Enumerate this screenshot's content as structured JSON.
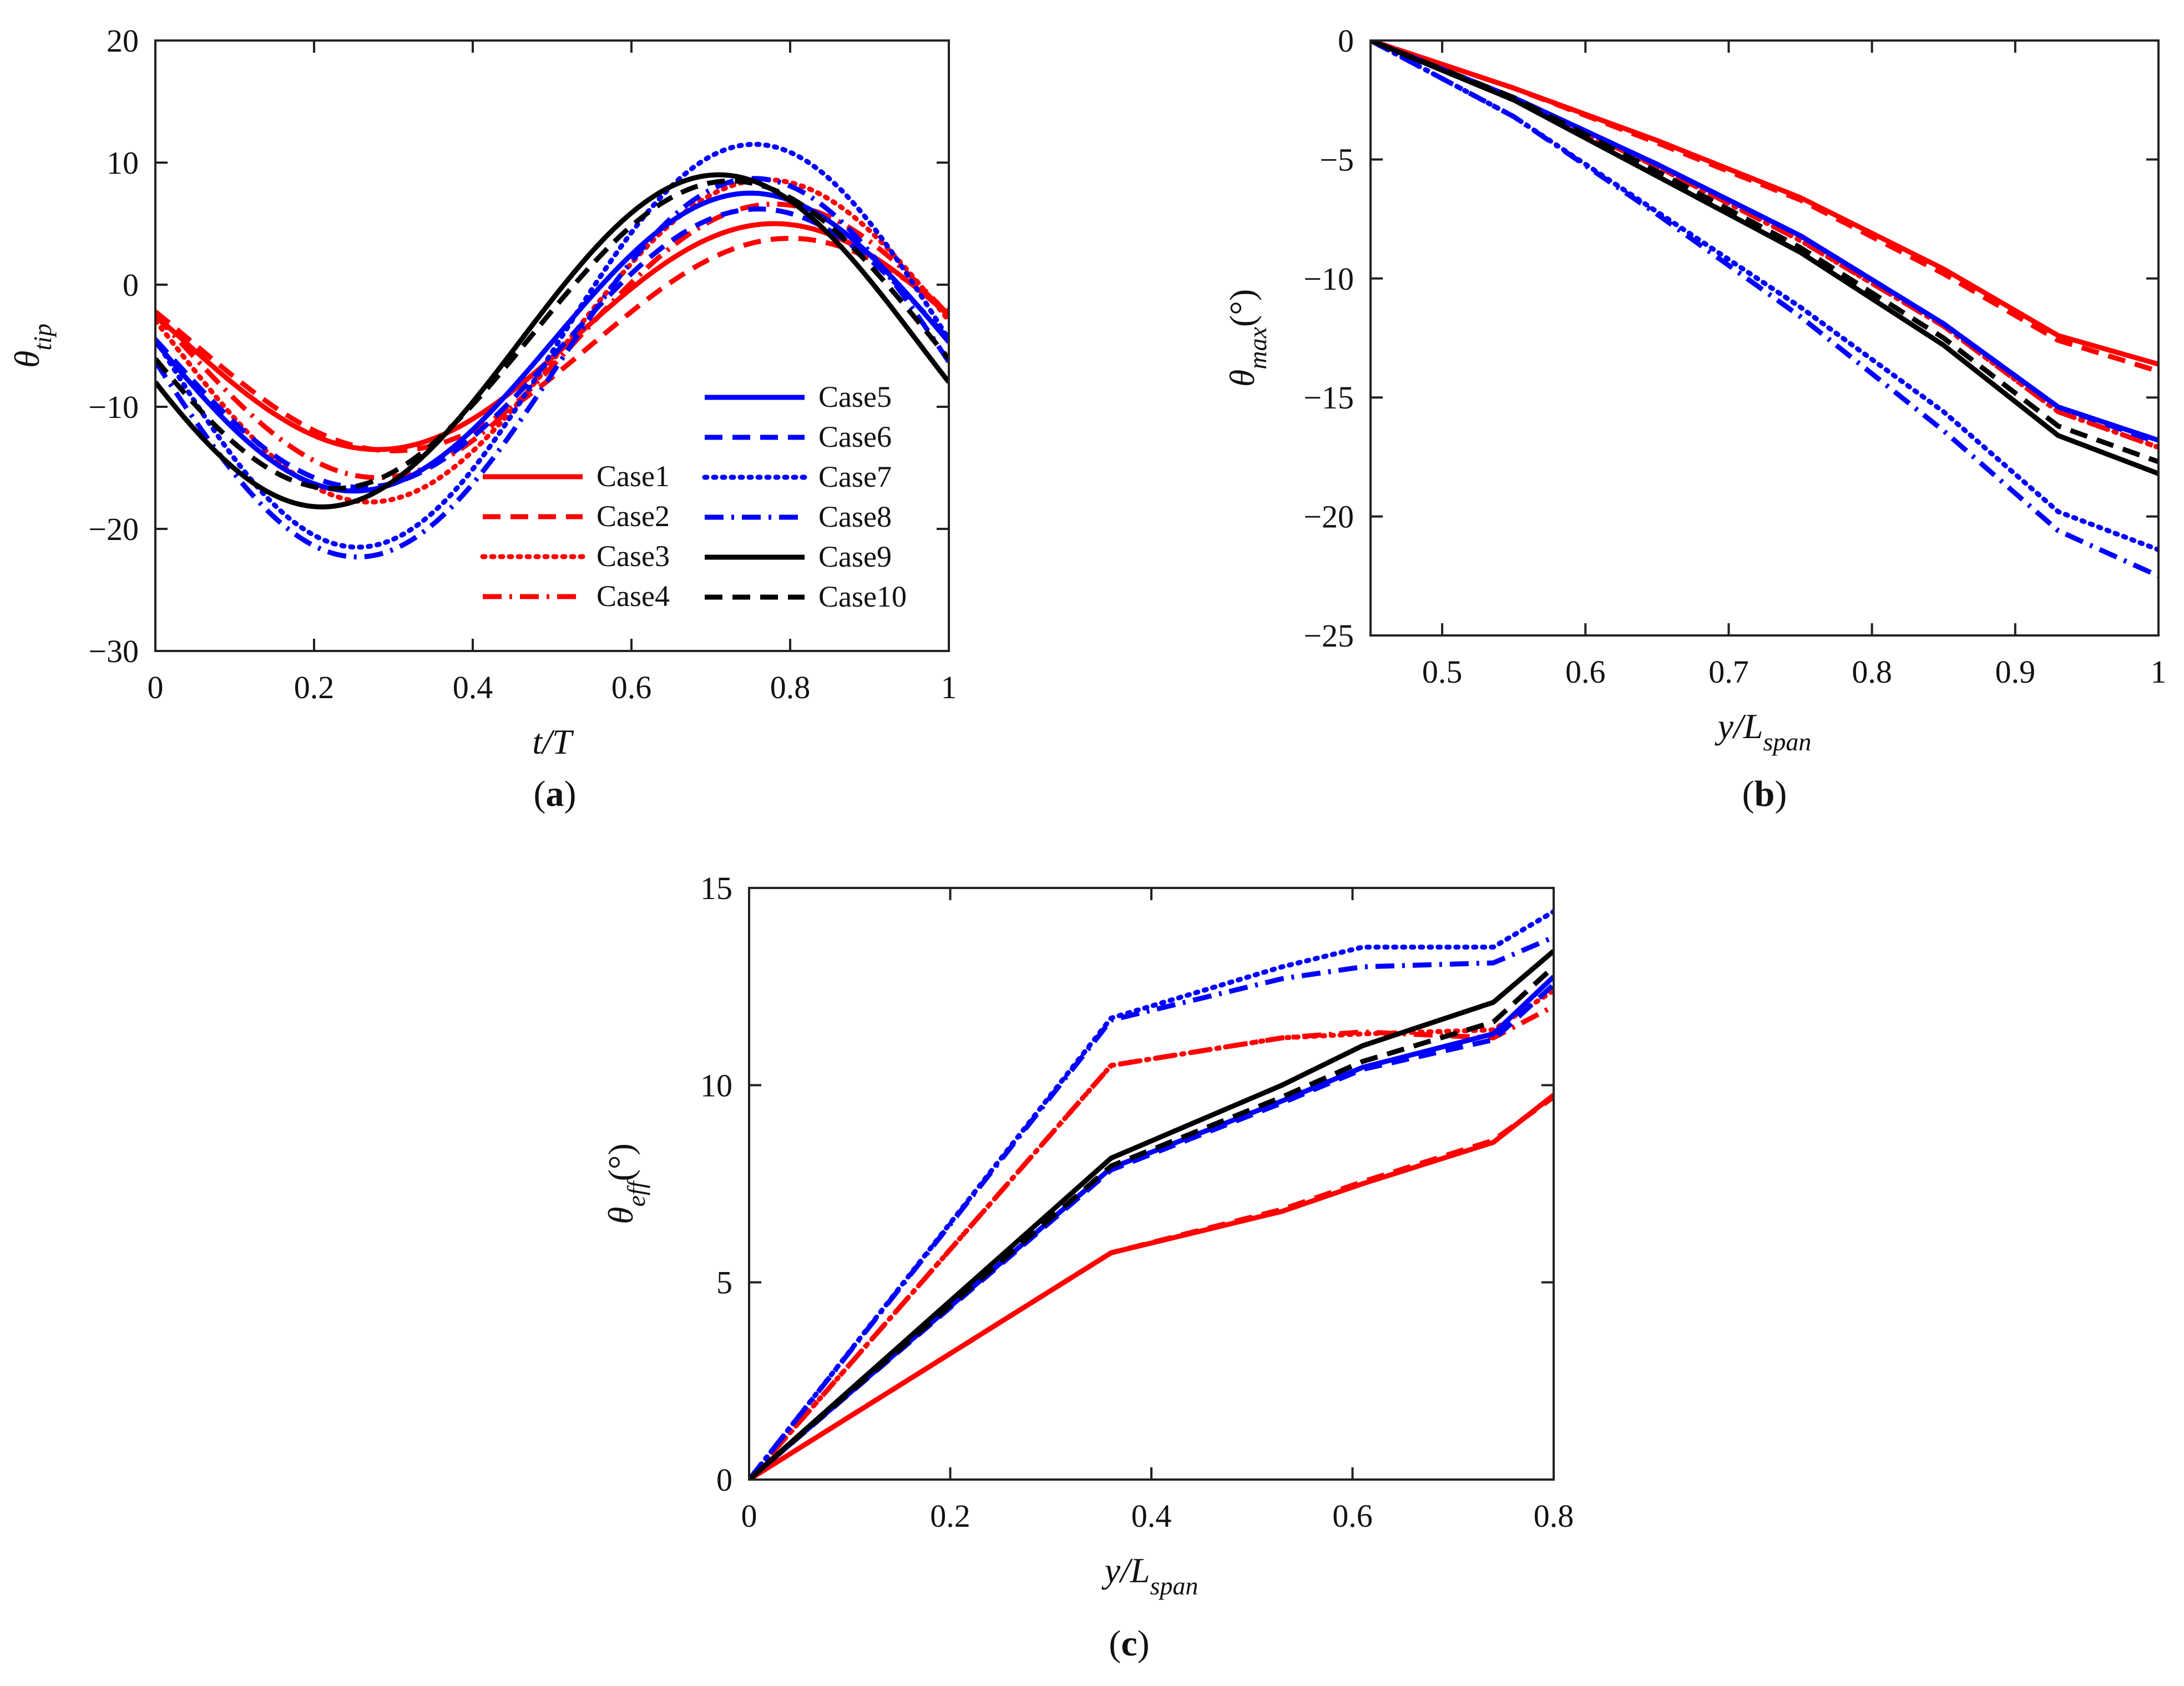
{
  "colors": {
    "red": "#ff0000",
    "blue": "#0000ff",
    "black": "#000000"
  },
  "legend": [
    {
      "label": "Case1",
      "color": "red",
      "style": "solid"
    },
    {
      "label": "Case2",
      "color": "red",
      "style": "dashed"
    },
    {
      "label": "Case3",
      "color": "red",
      "style": "dotted"
    },
    {
      "label": "Case4",
      "color": "red",
      "style": "dashdot"
    },
    {
      "label": "Case5",
      "color": "blue",
      "style": "solid"
    },
    {
      "label": "Case6",
      "color": "blue",
      "style": "dashed"
    },
    {
      "label": "Case7",
      "color": "blue",
      "style": "dotted"
    },
    {
      "label": "Case8",
      "color": "blue",
      "style": "dashdot"
    },
    {
      "label": "Case9",
      "color": "black",
      "style": "solid"
    },
    {
      "label": "Case10",
      "color": "black",
      "style": "dashed"
    }
  ],
  "chart_data": [
    {
      "id": "a",
      "type": "line",
      "panel_label": "a",
      "xlabel": "t/T",
      "ylabel": "θ",
      "ylabel_sub": "tip",
      "xlim": [
        0,
        1
      ],
      "ylim": [
        -30,
        20
      ],
      "xticks": [
        0,
        0.2,
        0.4,
        0.6,
        0.8,
        1
      ],
      "xtick_labels": [
        "0",
        "0.2",
        "0.4",
        "0.6",
        "0.8",
        "1"
      ],
      "yticks": [
        -30,
        -20,
        -10,
        0,
        10,
        20
      ],
      "ytick_labels": [
        "−30",
        "−20",
        "−10",
        "0",
        "10",
        "20"
      ],
      "legend_position": "lower-right",
      "series_model": "θ = mean + amp·sin(2π(t − phase))",
      "series": [
        {
          "name": "Case1",
          "mean": -4.25,
          "amp": 9.25,
          "phase": 0.53
        },
        {
          "name": "Case2",
          "mean": -4.9,
          "amp": 8.7,
          "phase": 0.55
        },
        {
          "name": "Case3",
          "mean": -4.6,
          "amp": 13.2,
          "phase": 0.52
        },
        {
          "name": "Case4",
          "mean": -4.6,
          "amp": 11.2,
          "phase": 0.53
        },
        {
          "name": "Case5",
          "mean": -4.7,
          "amp": 12.2,
          "phase": 0.5
        },
        {
          "name": "Case6",
          "mean": -5.2,
          "amp": 11.4,
          "phase": 0.51
        },
        {
          "name": "Case7",
          "mean": -5.0,
          "amp": 16.5,
          "phase": 0.505
        },
        {
          "name": "Case8",
          "mean": -6.8,
          "amp": 15.5,
          "phase": 0.505
        },
        {
          "name": "Case9",
          "mean": -4.6,
          "amp": 13.6,
          "phase": 0.46
        },
        {
          "name": "Case10",
          "mean": -4.1,
          "amp": 12.6,
          "phase": 0.475
        }
      ]
    },
    {
      "id": "b",
      "type": "line",
      "panel_label": "b",
      "xlabel": "y/L",
      "xlabel_sub": "span",
      "ylabel": "θ",
      "ylabel_sub": "max",
      "ylabel_suffix": "(°)",
      "xlim": [
        0.45,
        1
      ],
      "ylim": [
        -25,
        0
      ],
      "xticks": [
        0.5,
        0.6,
        0.7,
        0.8,
        0.9,
        1
      ],
      "xtick_labels": [
        "0.5",
        "0.6",
        "0.7",
        "0.8",
        "0.9",
        "1"
      ],
      "yticks": [
        -25,
        -20,
        -15,
        -10,
        -5,
        0
      ],
      "ytick_labels": [
        "−25",
        "−20",
        "−15",
        "−10",
        "−5",
        "0"
      ],
      "x": [
        0.45,
        0.55,
        0.65,
        0.75,
        0.85,
        0.93,
        1.0
      ],
      "series": [
        {
          "name": "Case1",
          "values": [
            0,
            -2.0,
            -4.2,
            -6.6,
            -9.6,
            -12.4,
            -13.6
          ]
        },
        {
          "name": "Case2",
          "values": [
            0,
            -2.0,
            -4.3,
            -6.7,
            -9.8,
            -12.6,
            -13.9
          ]
        },
        {
          "name": "Case3",
          "values": [
            0,
            -2.5,
            -5.3,
            -8.4,
            -12.0,
            -15.6,
            -17.1
          ]
        },
        {
          "name": "Case4",
          "values": [
            0,
            -2.5,
            -5.3,
            -8.4,
            -12.0,
            -15.6,
            -17.1
          ]
        },
        {
          "name": "Case5",
          "values": [
            0,
            -2.4,
            -5.2,
            -8.2,
            -11.9,
            -15.4,
            -16.8
          ]
        },
        {
          "name": "Case6",
          "values": [
            0,
            -2.4,
            -5.2,
            -8.2,
            -11.9,
            -15.4,
            -16.9
          ]
        },
        {
          "name": "Case7",
          "values": [
            0,
            -3.2,
            -7.2,
            -11.2,
            -15.6,
            -19.8,
            -21.4
          ]
        },
        {
          "name": "Case8",
          "values": [
            0,
            -3.2,
            -7.3,
            -11.6,
            -16.4,
            -20.6,
            -22.5
          ]
        },
        {
          "name": "Case9",
          "values": [
            0,
            -2.5,
            -5.7,
            -8.9,
            -12.8,
            -16.6,
            -18.2
          ]
        },
        {
          "name": "Case10",
          "values": [
            0,
            -2.4,
            -5.5,
            -8.7,
            -12.5,
            -16.2,
            -17.7
          ]
        }
      ]
    },
    {
      "id": "c",
      "type": "line",
      "panel_label": "c",
      "xlabel": "y/L",
      "xlabel_sub": "span",
      "ylabel": "θ",
      "ylabel_sub": "eff",
      "ylabel_suffix": "(°)",
      "xlim": [
        0,
        0.8
      ],
      "ylim": [
        0,
        15
      ],
      "xticks": [
        0,
        0.2,
        0.4,
        0.6,
        0.8
      ],
      "xtick_labels": [
        "0",
        "0.2",
        "0.4",
        "0.6",
        "0.8"
      ],
      "yticks": [
        0,
        5,
        10,
        15
      ],
      "ytick_labels": [
        "0",
        "5",
        "10",
        "15"
      ],
      "x": [
        0,
        0.36,
        0.53,
        0.61,
        0.74,
        0.8
      ],
      "series": [
        {
          "name": "Case1",
          "values": [
            0,
            5.75,
            6.8,
            7.5,
            8.55,
            9.75
          ]
        },
        {
          "name": "Case2",
          "values": [
            0,
            5.75,
            6.85,
            7.55,
            8.6,
            9.7
          ]
        },
        {
          "name": "Case3",
          "values": [
            0,
            10.5,
            11.2,
            11.3,
            11.4,
            12.4
          ]
        },
        {
          "name": "Case4",
          "values": [
            0,
            10.5,
            11.2,
            11.35,
            11.2,
            12.0
          ]
        },
        {
          "name": "Case5",
          "values": [
            0,
            7.9,
            9.6,
            10.45,
            11.3,
            12.75
          ]
        },
        {
          "name": "Case6",
          "values": [
            0,
            7.85,
            9.55,
            10.4,
            11.15,
            12.55
          ]
        },
        {
          "name": "Case7",
          "values": [
            0,
            11.7,
            13.0,
            13.5,
            13.5,
            14.4
          ]
        },
        {
          "name": "Case8",
          "values": [
            0,
            11.65,
            12.7,
            13.0,
            13.1,
            13.75
          ]
        },
        {
          "name": "Case9",
          "values": [
            0,
            8.15,
            10.0,
            11.0,
            12.1,
            13.4
          ]
        },
        {
          "name": "Case10",
          "values": [
            0,
            7.95,
            9.7,
            10.6,
            11.6,
            13.0
          ]
        }
      ]
    }
  ]
}
